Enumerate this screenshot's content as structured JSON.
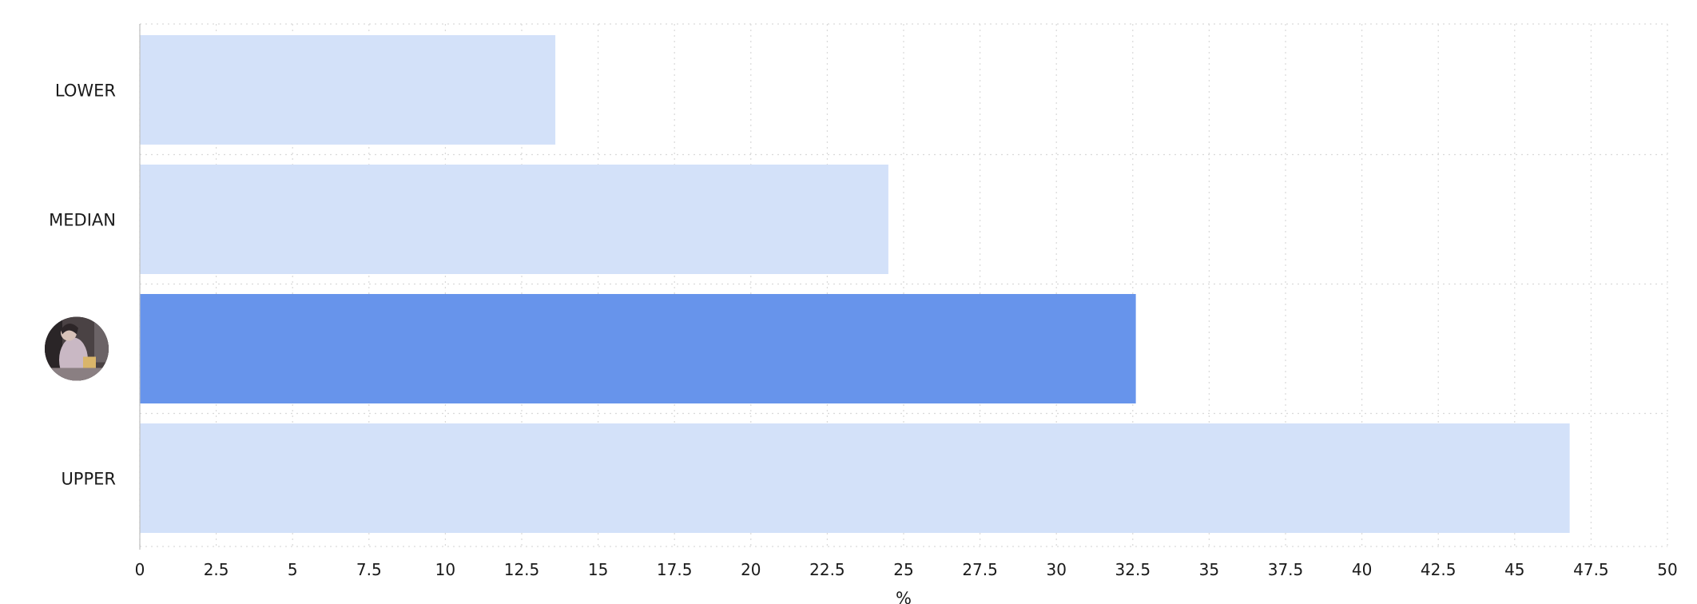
{
  "chart_data": {
    "type": "bar",
    "orientation": "horizontal",
    "categories": [
      "LOWER",
      "MEDIAN",
      "",
      "UPPER"
    ],
    "values": [
      13.6,
      24.5,
      32.6,
      46.8
    ],
    "highlight_index": 2,
    "highlight_marker": "avatar-icon",
    "xlabel": "%",
    "ylabel": "",
    "xlim": [
      0,
      50
    ],
    "xticks": [
      "0",
      "2.5",
      "5",
      "7.5",
      "10",
      "12.5",
      "15",
      "17.5",
      "20",
      "22.5",
      "25",
      "27.5",
      "30",
      "32.5",
      "35",
      "37.5",
      "40",
      "42.5",
      "45",
      "47.5",
      "50"
    ],
    "grid": true,
    "legend": "none",
    "colors": {
      "bar": "#d3e1f9",
      "highlight": "#6794eb"
    }
  }
}
